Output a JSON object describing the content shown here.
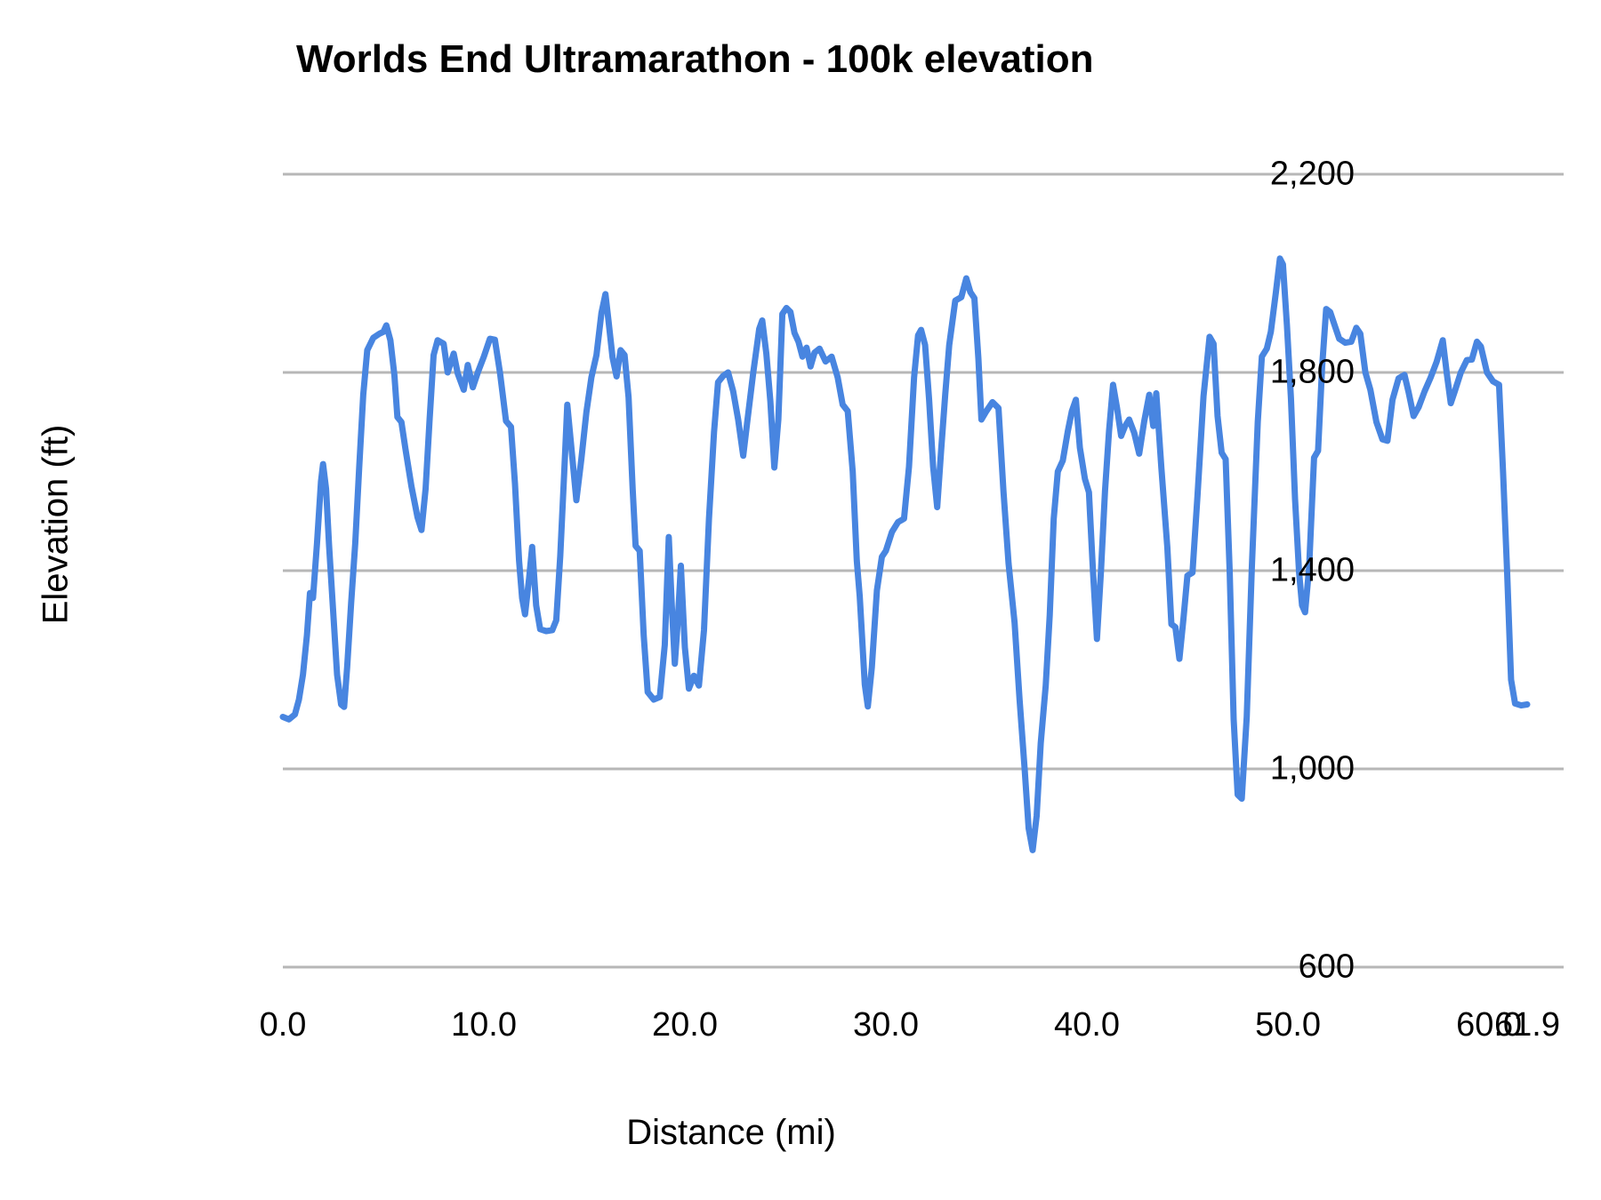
{
  "chart_data": {
    "type": "line",
    "title": "Worlds End Ultramarathon - 100k elevation",
    "xlabel": "Distance (mi)",
    "ylabel": "Elevation (ft)",
    "xlim": [
      0,
      61.9
    ],
    "ylim": [
      600,
      2200
    ],
    "grid": "horizontal",
    "legend": "none",
    "line_color": "#4885e0",
    "gridline_color": "#b7b7b7",
    "x_ticks": [
      {
        "label": "0.0",
        "value": 0
      },
      {
        "label": "10.0",
        "value": 10
      },
      {
        "label": "20.0",
        "value": 20
      },
      {
        "label": "30.0",
        "value": 30
      },
      {
        "label": "40.0",
        "value": 40
      },
      {
        "label": "50.0",
        "value": 50
      },
      {
        "label": "60.0",
        "value": 60
      },
      {
        "label": "61.9",
        "value": 61.9
      }
    ],
    "y_ticks": [
      {
        "label": "600",
        "value": 600
      },
      {
        "label": "1,000",
        "value": 1000
      },
      {
        "label": "1,400",
        "value": 1400
      },
      {
        "label": "1,800",
        "value": 1800
      },
      {
        "label": "2,200",
        "value": 2200
      }
    ],
    "series": [
      {
        "name": "elevation",
        "x_unit": "mi",
        "y_unit": "ft",
        "points": [
          [
            0,
            1105
          ],
          [
            0.3,
            1100
          ],
          [
            0.6,
            1110
          ],
          [
            0.8,
            1140
          ],
          [
            1.0,
            1190
          ],
          [
            1.2,
            1270
          ],
          [
            1.35,
            1355
          ],
          [
            1.5,
            1345
          ],
          [
            1.7,
            1455
          ],
          [
            1.9,
            1580
          ],
          [
            2.0,
            1615
          ],
          [
            2.15,
            1565
          ],
          [
            2.3,
            1450
          ],
          [
            2.5,
            1320
          ],
          [
            2.7,
            1190
          ],
          [
            2.9,
            1130
          ],
          [
            3.05,
            1125
          ],
          [
            3.2,
            1205
          ],
          [
            3.4,
            1335
          ],
          [
            3.6,
            1455
          ],
          [
            3.8,
            1610
          ],
          [
            4.0,
            1755
          ],
          [
            4.2,
            1845
          ],
          [
            4.5,
            1870
          ],
          [
            4.8,
            1878
          ],
          [
            5.0,
            1882
          ],
          [
            5.15,
            1895
          ],
          [
            5.35,
            1865
          ],
          [
            5.55,
            1795
          ],
          [
            5.7,
            1710
          ],
          [
            5.9,
            1700
          ],
          [
            6.1,
            1645
          ],
          [
            6.4,
            1570
          ],
          [
            6.7,
            1508
          ],
          [
            6.9,
            1482
          ],
          [
            7.1,
            1565
          ],
          [
            7.3,
            1705
          ],
          [
            7.5,
            1835
          ],
          [
            7.7,
            1865
          ],
          [
            8.0,
            1858
          ],
          [
            8.2,
            1800
          ],
          [
            8.5,
            1838
          ],
          [
            8.7,
            1798
          ],
          [
            9.0,
            1765
          ],
          [
            9.2,
            1815
          ],
          [
            9.45,
            1770
          ],
          [
            9.7,
            1800
          ],
          [
            10.0,
            1832
          ],
          [
            10.3,
            1868
          ],
          [
            10.55,
            1866
          ],
          [
            10.8,
            1800
          ],
          [
            11.1,
            1702
          ],
          [
            11.35,
            1690
          ],
          [
            11.55,
            1575
          ],
          [
            11.75,
            1420
          ],
          [
            11.9,
            1345
          ],
          [
            12.05,
            1312
          ],
          [
            12.25,
            1385
          ],
          [
            12.4,
            1448
          ],
          [
            12.6,
            1330
          ],
          [
            12.8,
            1282
          ],
          [
            13.1,
            1278
          ],
          [
            13.4,
            1280
          ],
          [
            13.6,
            1300
          ],
          [
            13.8,
            1430
          ],
          [
            14.0,
            1600
          ],
          [
            14.15,
            1735
          ],
          [
            14.35,
            1650
          ],
          [
            14.6,
            1542
          ],
          [
            14.85,
            1625
          ],
          [
            15.1,
            1720
          ],
          [
            15.35,
            1790
          ],
          [
            15.6,
            1835
          ],
          [
            15.85,
            1920
          ],
          [
            16.05,
            1958
          ],
          [
            16.2,
            1905
          ],
          [
            16.4,
            1830
          ],
          [
            16.6,
            1792
          ],
          [
            16.8,
            1845
          ],
          [
            17.0,
            1835
          ],
          [
            17.2,
            1750
          ],
          [
            17.4,
            1565
          ],
          [
            17.55,
            1450
          ],
          [
            17.75,
            1440
          ],
          [
            17.95,
            1270
          ],
          [
            18.15,
            1155
          ],
          [
            18.45,
            1140
          ],
          [
            18.75,
            1145
          ],
          [
            19.0,
            1250
          ],
          [
            19.2,
            1468
          ],
          [
            19.35,
            1330
          ],
          [
            19.5,
            1212
          ],
          [
            19.65,
            1300
          ],
          [
            19.8,
            1410
          ],
          [
            20.0,
            1245
          ],
          [
            20.2,
            1162
          ],
          [
            20.45,
            1188
          ],
          [
            20.7,
            1168
          ],
          [
            20.95,
            1280
          ],
          [
            21.2,
            1505
          ],
          [
            21.45,
            1680
          ],
          [
            21.65,
            1780
          ],
          [
            21.9,
            1793
          ],
          [
            22.15,
            1800
          ],
          [
            22.4,
            1762
          ],
          [
            22.65,
            1705
          ],
          [
            22.9,
            1632
          ],
          [
            23.1,
            1700
          ],
          [
            23.4,
            1800
          ],
          [
            23.7,
            1888
          ],
          [
            23.85,
            1905
          ],
          [
            24.05,
            1838
          ],
          [
            24.25,
            1742
          ],
          [
            24.45,
            1608
          ],
          [
            24.65,
            1705
          ],
          [
            24.85,
            1918
          ],
          [
            25.05,
            1930
          ],
          [
            25.25,
            1922
          ],
          [
            25.45,
            1880
          ],
          [
            25.65,
            1862
          ],
          [
            25.85,
            1832
          ],
          [
            26.05,
            1850
          ],
          [
            26.25,
            1812
          ],
          [
            26.45,
            1840
          ],
          [
            26.7,
            1848
          ],
          [
            27.0,
            1822
          ],
          [
            27.3,
            1832
          ],
          [
            27.6,
            1790
          ],
          [
            27.85,
            1735
          ],
          [
            28.1,
            1722
          ],
          [
            28.35,
            1600
          ],
          [
            28.55,
            1420
          ],
          [
            28.7,
            1348
          ],
          [
            28.95,
            1170
          ],
          [
            29.1,
            1126
          ],
          [
            29.3,
            1205
          ],
          [
            29.55,
            1360
          ],
          [
            29.8,
            1428
          ],
          [
            30.0,
            1440
          ],
          [
            30.3,
            1478
          ],
          [
            30.6,
            1498
          ],
          [
            30.9,
            1505
          ],
          [
            31.15,
            1610
          ],
          [
            31.4,
            1790
          ],
          [
            31.6,
            1875
          ],
          [
            31.75,
            1886
          ],
          [
            31.95,
            1855
          ],
          [
            32.15,
            1745
          ],
          [
            32.35,
            1610
          ],
          [
            32.55,
            1528
          ],
          [
            32.75,
            1645
          ],
          [
            32.95,
            1755
          ],
          [
            33.15,
            1855
          ],
          [
            33.45,
            1945
          ],
          [
            33.75,
            1952
          ],
          [
            34.0,
            1990
          ],
          [
            34.2,
            1962
          ],
          [
            34.4,
            1950
          ],
          [
            34.6,
            1828
          ],
          [
            34.75,
            1705
          ],
          [
            35.0,
            1722
          ],
          [
            35.3,
            1740
          ],
          [
            35.6,
            1728
          ],
          [
            35.85,
            1560
          ],
          [
            36.1,
            1415
          ],
          [
            36.4,
            1295
          ],
          [
            36.65,
            1140
          ],
          [
            36.9,
            1000
          ],
          [
            37.1,
            880
          ],
          [
            37.3,
            836
          ],
          [
            37.5,
            905
          ],
          [
            37.7,
            1052
          ],
          [
            37.95,
            1168
          ],
          [
            38.15,
            1310
          ],
          [
            38.35,
            1505
          ],
          [
            38.55,
            1600
          ],
          [
            38.8,
            1622
          ],
          [
            39.05,
            1682
          ],
          [
            39.25,
            1722
          ],
          [
            39.45,
            1745
          ],
          [
            39.65,
            1648
          ],
          [
            39.9,
            1585
          ],
          [
            40.1,
            1558
          ],
          [
            40.3,
            1400
          ],
          [
            40.5,
            1262
          ],
          [
            40.7,
            1402
          ],
          [
            40.9,
            1562
          ],
          [
            41.1,
            1682
          ],
          [
            41.3,
            1775
          ],
          [
            41.5,
            1728
          ],
          [
            41.7,
            1672
          ],
          [
            41.9,
            1692
          ],
          [
            42.1,
            1705
          ],
          [
            42.35,
            1678
          ],
          [
            42.6,
            1636
          ],
          [
            42.85,
            1702
          ],
          [
            43.1,
            1755
          ],
          [
            43.3,
            1692
          ],
          [
            43.45,
            1758
          ],
          [
            43.7,
            1608
          ],
          [
            44.0,
            1448
          ],
          [
            44.2,
            1292
          ],
          [
            44.4,
            1286
          ],
          [
            44.6,
            1222
          ],
          [
            44.8,
            1302
          ],
          [
            45.0,
            1390
          ],
          [
            45.25,
            1396
          ],
          [
            45.5,
            1550
          ],
          [
            45.8,
            1752
          ],
          [
            46.1,
            1872
          ],
          [
            46.3,
            1858
          ],
          [
            46.5,
            1712
          ],
          [
            46.7,
            1638
          ],
          [
            46.9,
            1625
          ],
          [
            47.1,
            1400
          ],
          [
            47.3,
            1100
          ],
          [
            47.5,
            948
          ],
          [
            47.7,
            940
          ],
          [
            47.95,
            1105
          ],
          [
            48.2,
            1405
          ],
          [
            48.5,
            1700
          ],
          [
            48.7,
            1832
          ],
          [
            48.95,
            1848
          ],
          [
            49.15,
            1882
          ],
          [
            49.4,
            1962
          ],
          [
            49.6,
            2030
          ],
          [
            49.75,
            2018
          ],
          [
            49.95,
            1895
          ],
          [
            50.15,
            1748
          ],
          [
            50.35,
            1545
          ],
          [
            50.55,
            1398
          ],
          [
            50.7,
            1330
          ],
          [
            50.85,
            1316
          ],
          [
            51.05,
            1405
          ],
          [
            51.3,
            1628
          ],
          [
            51.5,
            1642
          ],
          [
            51.7,
            1812
          ],
          [
            51.9,
            1928
          ],
          [
            52.1,
            1922
          ],
          [
            52.3,
            1898
          ],
          [
            52.55,
            1868
          ],
          [
            52.85,
            1860
          ],
          [
            53.15,
            1862
          ],
          [
            53.4,
            1890
          ],
          [
            53.6,
            1878
          ],
          [
            53.85,
            1800
          ],
          [
            54.1,
            1765
          ],
          [
            54.4,
            1700
          ],
          [
            54.7,
            1665
          ],
          [
            54.95,
            1662
          ],
          [
            55.2,
            1745
          ],
          [
            55.5,
            1788
          ],
          [
            55.8,
            1795
          ],
          [
            56.0,
            1760
          ],
          [
            56.25,
            1712
          ],
          [
            56.5,
            1730
          ],
          [
            56.8,
            1762
          ],
          [
            57.1,
            1790
          ],
          [
            57.4,
            1822
          ],
          [
            57.7,
            1865
          ],
          [
            57.9,
            1798
          ],
          [
            58.1,
            1738
          ],
          [
            58.3,
            1762
          ],
          [
            58.6,
            1800
          ],
          [
            58.9,
            1825
          ],
          [
            59.15,
            1826
          ],
          [
            59.4,
            1862
          ],
          [
            59.6,
            1852
          ],
          [
            59.9,
            1800
          ],
          [
            60.2,
            1782
          ],
          [
            60.5,
            1775
          ],
          [
            60.7,
            1598
          ],
          [
            60.9,
            1400
          ],
          [
            61.1,
            1180
          ],
          [
            61.3,
            1132
          ],
          [
            61.6,
            1128
          ],
          [
            61.9,
            1130
          ]
        ]
      }
    ]
  }
}
